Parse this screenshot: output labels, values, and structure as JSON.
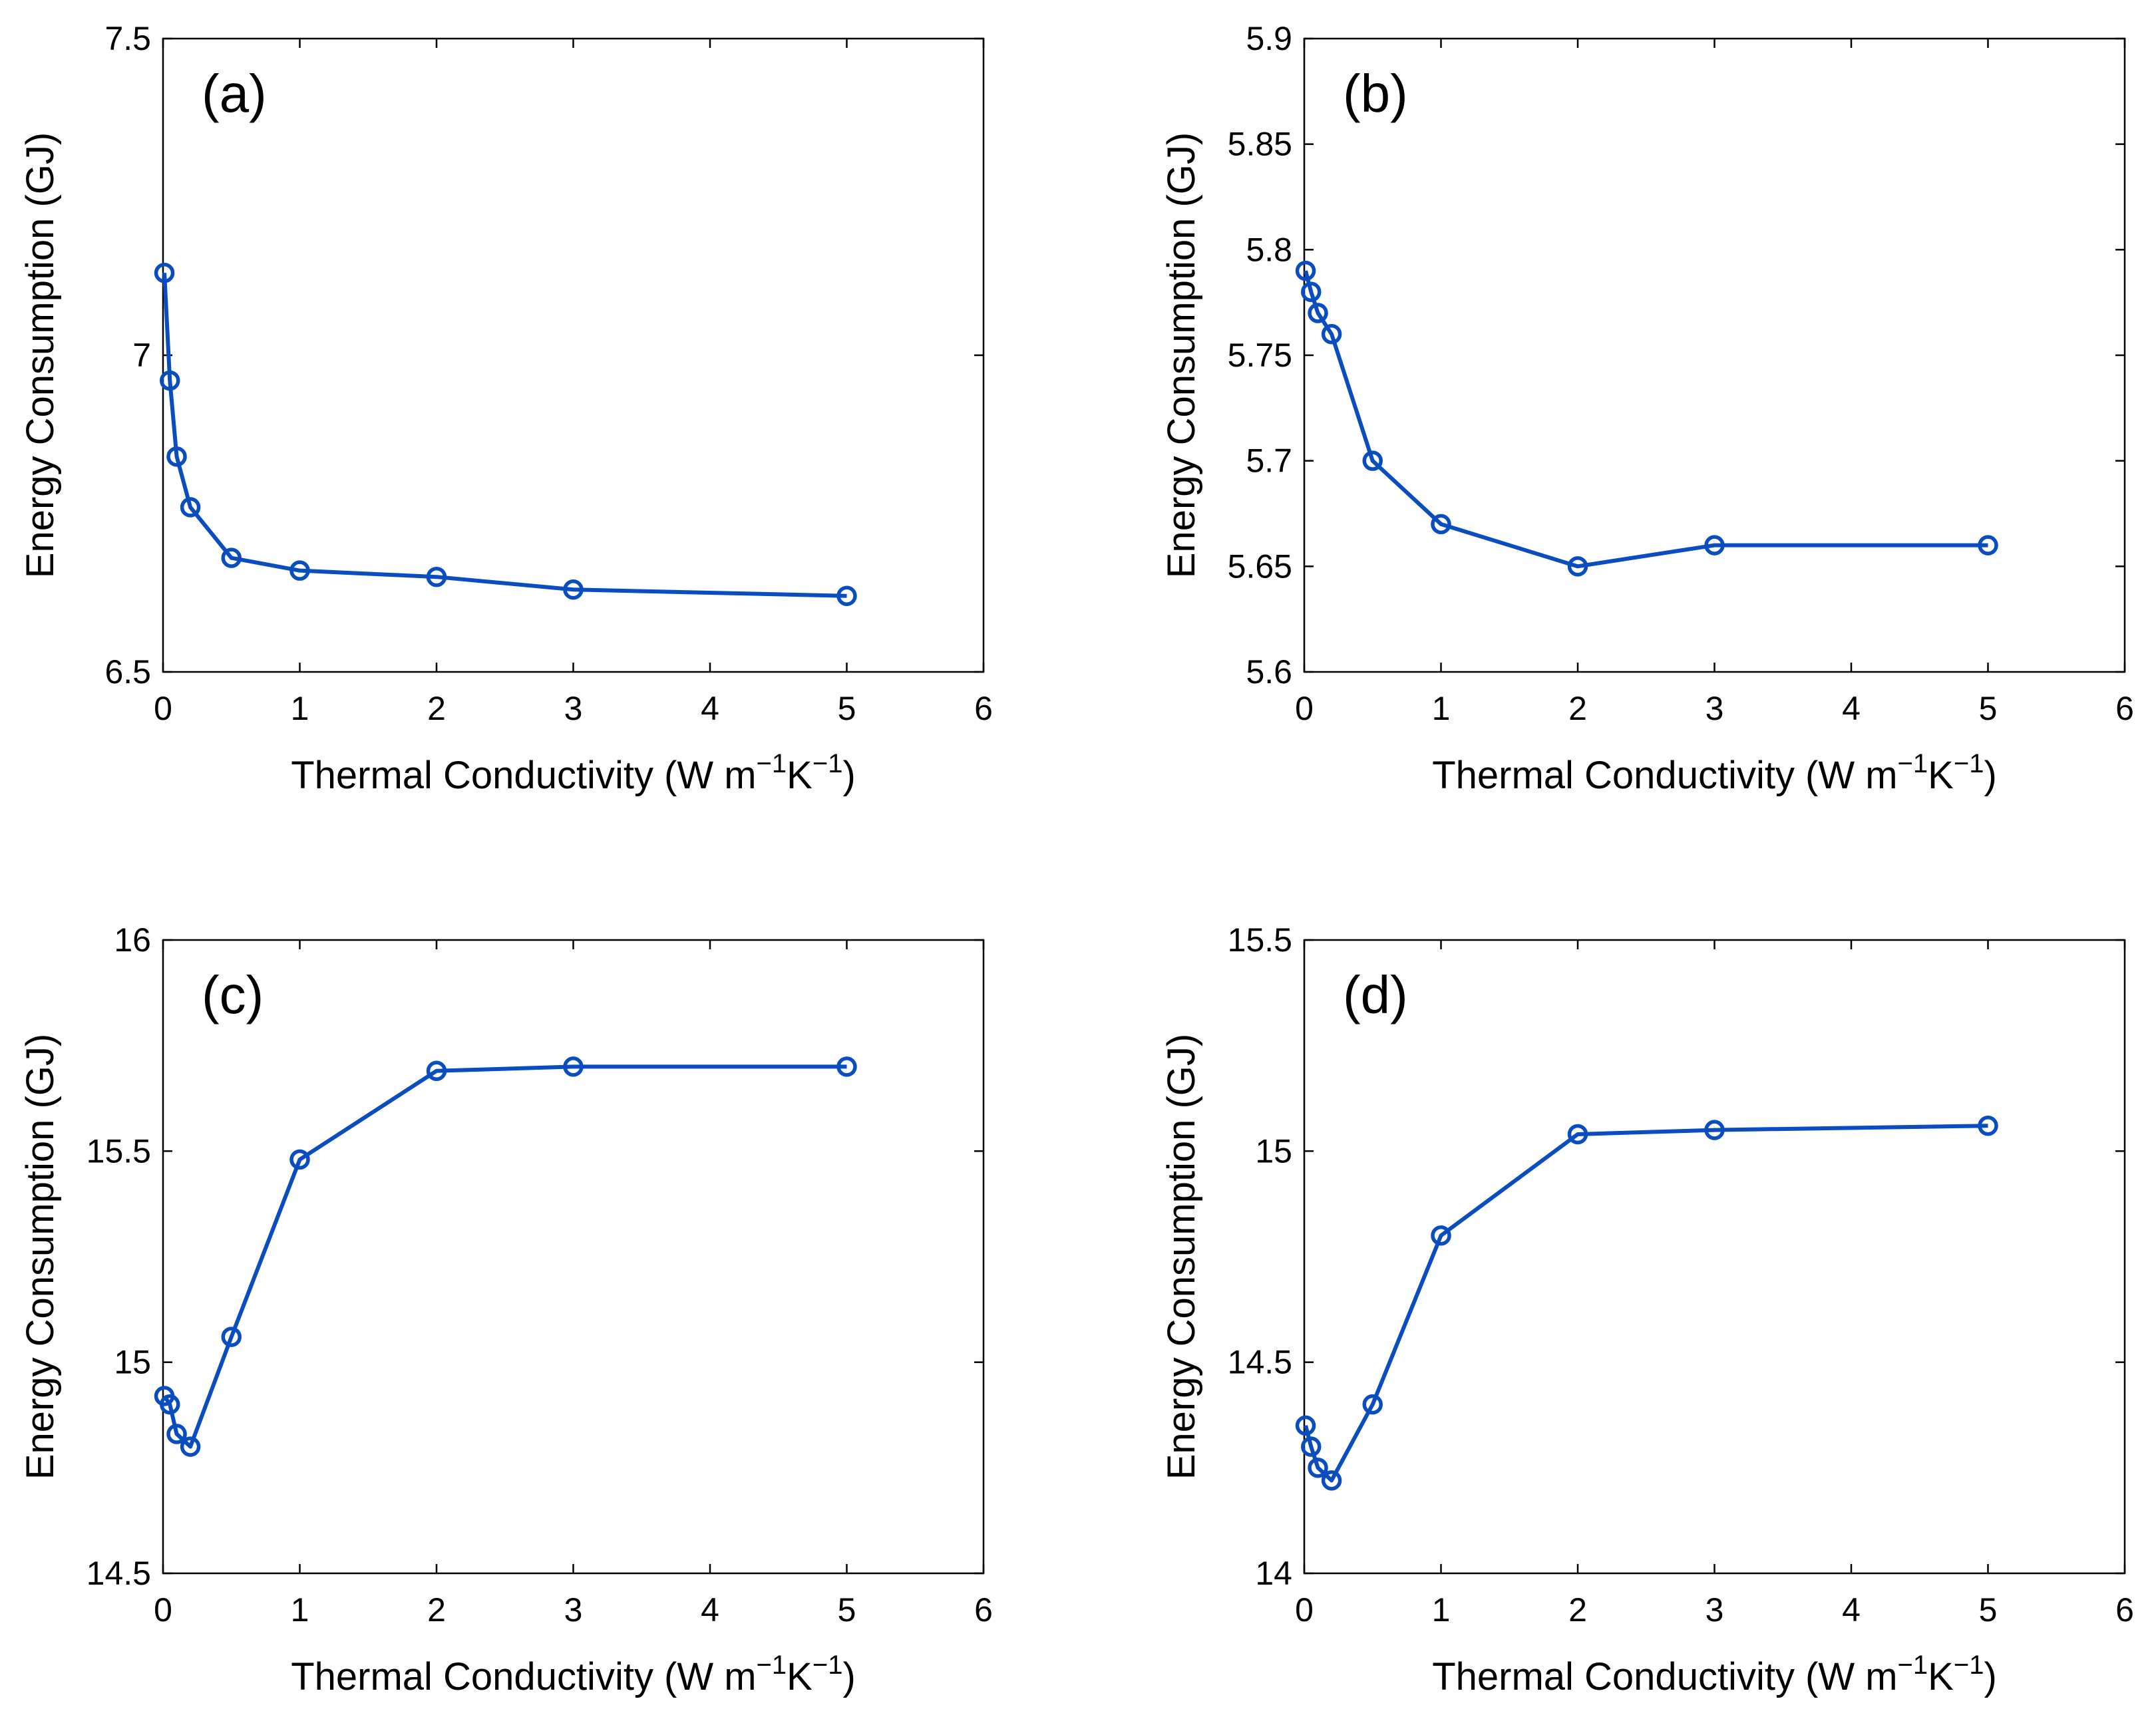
{
  "figure": {
    "chart_data": [
      {
        "type": "line",
        "panel_label": "(a)",
        "xlabel": {
          "text": "Thermal Conductivity (W m",
          "sup1": "−1",
          "mid": "K",
          "sup2": "−1",
          "end": ")"
        },
        "ylabel": "Energy Consumption (GJ)",
        "xlim": [
          0,
          6
        ],
        "ylim": [
          6.5,
          7.5
        ],
        "xticks": [
          0,
          1,
          2,
          3,
          4,
          5,
          6
        ],
        "yticks": [
          6.5,
          7,
          7.5
        ],
        "ytick_labels": [
          "6.5",
          "7",
          "7.5"
        ],
        "x": [
          0.01,
          0.05,
          0.1,
          0.2,
          0.5,
          1,
          2,
          3,
          5
        ],
        "y": [
          7.13,
          6.96,
          6.84,
          6.76,
          6.68,
          6.66,
          6.65,
          6.63,
          6.62
        ],
        "color": "#0a4dbf"
      },
      {
        "type": "line",
        "panel_label": "(b)",
        "xlabel": {
          "text": "Thermal Conductivity (W m",
          "sup1": "−1",
          "mid": "K",
          "sup2": "−1",
          "end": ")"
        },
        "ylabel": "Energy Consumption (GJ)",
        "xlim": [
          0,
          6
        ],
        "ylim": [
          5.6,
          5.9
        ],
        "xticks": [
          0,
          1,
          2,
          3,
          4,
          5,
          6
        ],
        "yticks": [
          5.6,
          5.65,
          5.7,
          5.75,
          5.8,
          5.85,
          5.9
        ],
        "ytick_labels": [
          "5.6",
          "5.65",
          "5.7",
          "5.75",
          "5.8",
          "5.85",
          "5.9"
        ],
        "x": [
          0.01,
          0.05,
          0.1,
          0.2,
          0.5,
          1,
          2,
          3,
          5
        ],
        "y": [
          5.79,
          5.78,
          5.77,
          5.76,
          5.7,
          5.67,
          5.65,
          5.66,
          5.66
        ],
        "color": "#0a4dbf"
      },
      {
        "type": "line",
        "panel_label": "(c)",
        "xlabel": {
          "text": "Thermal Conductivity (W m",
          "sup1": "−1",
          "mid": "K",
          "sup2": "−1",
          "end": ")"
        },
        "ylabel": "Energy Consumption (GJ)",
        "xlim": [
          0,
          6
        ],
        "ylim": [
          14.5,
          16
        ],
        "xticks": [
          0,
          1,
          2,
          3,
          4,
          5,
          6
        ],
        "yticks": [
          14.5,
          15,
          15.5,
          16
        ],
        "ytick_labels": [
          "14.5",
          "15",
          "15.5",
          "16"
        ],
        "x": [
          0.01,
          0.05,
          0.1,
          0.2,
          0.5,
          1,
          2,
          3,
          5
        ],
        "y": [
          14.92,
          14.9,
          14.83,
          14.8,
          15.06,
          15.48,
          15.69,
          15.7,
          15.7
        ],
        "color": "#0a4dbf"
      },
      {
        "type": "line",
        "panel_label": "(d)",
        "xlabel": {
          "text": "Thermal Conductivity (W m",
          "sup1": "−1",
          "mid": "K",
          "sup2": "−1",
          "end": ")"
        },
        "ylabel": "Energy Consumption (GJ)",
        "xlim": [
          0,
          6
        ],
        "ylim": [
          14,
          15.5
        ],
        "xticks": [
          0,
          1,
          2,
          3,
          4,
          5,
          6
        ],
        "yticks": [
          14,
          14.5,
          15,
          15.5
        ],
        "ytick_labels": [
          "14",
          "14.5",
          "15",
          "15.5"
        ],
        "x": [
          0.01,
          0.05,
          0.1,
          0.2,
          0.5,
          1,
          2,
          3,
          5
        ],
        "y": [
          14.35,
          14.3,
          14.25,
          14.22,
          14.4,
          14.8,
          15.04,
          15.05,
          15.06
        ],
        "color": "#0a4dbf"
      }
    ]
  }
}
